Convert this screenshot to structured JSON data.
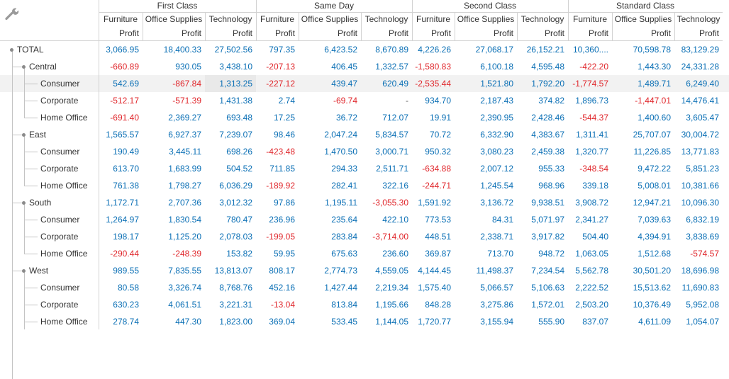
{
  "toolbar": {
    "icon": "wrench-icon"
  },
  "columns": {
    "groups": [
      "First Class",
      "Same Day",
      "Second Class",
      "Standard Class"
    ],
    "categories": [
      "Furniture",
      "Office Supplies",
      "Technology"
    ],
    "measure": "Profit"
  },
  "rows": [
    {
      "label": "TOTAL",
      "level": 0,
      "values": [
        "3,066.95",
        "18,400.33",
        "27,502.56",
        "797.35",
        "6,423.52",
        "8,670.89",
        "4,226.26",
        "27,068.17",
        "26,152.21",
        "10,360....",
        "70,598.78",
        "83,129.29"
      ]
    },
    {
      "label": "Central",
      "level": 1,
      "values": [
        "-660.89",
        "930.05",
        "3,438.10",
        "-207.13",
        "406.45",
        "1,332.57",
        "-1,580.83",
        "6,100.18",
        "4,595.48",
        "-422.20",
        "1,443.30",
        "24,331.28"
      ]
    },
    {
      "label": "Consumer",
      "level": 2,
      "values": [
        "542.69",
        "-867.84",
        "1,313.25",
        "-227.12",
        "439.47",
        "620.49",
        "-2,535.44",
        "1,521.80",
        "1,792.20",
        "-1,774.57",
        "1,489.71",
        "6,249.40"
      ]
    },
    {
      "label": "Corporate",
      "level": 2,
      "values": [
        "-512.17",
        "-571.39",
        "1,431.38",
        "2.74",
        "-69.74",
        "-",
        "934.70",
        "2,187.43",
        "374.82",
        "1,896.73",
        "-1,447.01",
        "14,476.41"
      ]
    },
    {
      "label": "Home Office",
      "level": 2,
      "values": [
        "-691.40",
        "2,369.27",
        "693.48",
        "17.25",
        "36.72",
        "712.07",
        "19.91",
        "2,390.95",
        "2,428.46",
        "-544.37",
        "1,400.60",
        "3,605.47"
      ]
    },
    {
      "label": "East",
      "level": 1,
      "values": [
        "1,565.57",
        "6,927.37",
        "7,239.07",
        "98.46",
        "2,047.24",
        "5,834.57",
        "70.72",
        "6,332.90",
        "4,383.67",
        "1,311.41",
        "25,707.07",
        "30,004.72"
      ]
    },
    {
      "label": "Consumer",
      "level": 2,
      "values": [
        "190.49",
        "3,445.11",
        "698.26",
        "-423.48",
        "1,470.50",
        "3,000.71",
        "950.32",
        "3,080.23",
        "2,459.38",
        "1,320.77",
        "11,226.85",
        "13,771.83"
      ]
    },
    {
      "label": "Corporate",
      "level": 2,
      "values": [
        "613.70",
        "1,683.99",
        "504.52",
        "711.85",
        "294.33",
        "2,511.71",
        "-634.88",
        "2,007.12",
        "955.33",
        "-348.54",
        "9,472.22",
        "5,851.23"
      ]
    },
    {
      "label": "Home Office",
      "level": 2,
      "values": [
        "761.38",
        "1,798.27",
        "6,036.29",
        "-189.92",
        "282.41",
        "322.16",
        "-244.71",
        "1,245.54",
        "968.96",
        "339.18",
        "5,008.01",
        "10,381.66"
      ]
    },
    {
      "label": "South",
      "level": 1,
      "values": [
        "1,172.71",
        "2,707.36",
        "3,012.32",
        "97.86",
        "1,195.11",
        "-3,055.30",
        "1,591.92",
        "3,136.72",
        "9,938.51",
        "3,908.72",
        "12,947.21",
        "10,096.30"
      ]
    },
    {
      "label": "Consumer",
      "level": 2,
      "values": [
        "1,264.97",
        "1,830.54",
        "780.47",
        "236.96",
        "235.64",
        "422.10",
        "773.53",
        "84.31",
        "5,071.97",
        "2,341.27",
        "7,039.63",
        "6,832.19"
      ]
    },
    {
      "label": "Corporate",
      "level": 2,
      "values": [
        "198.17",
        "1,125.20",
        "2,078.03",
        "-199.05",
        "283.84",
        "-3,714.00",
        "448.51",
        "2,338.71",
        "3,917.82",
        "504.40",
        "4,394.91",
        "3,838.69"
      ]
    },
    {
      "label": "Home Office",
      "level": 2,
      "values": [
        "-290.44",
        "-248.39",
        "153.82",
        "59.95",
        "675.63",
        "236.60",
        "369.87",
        "713.70",
        "948.72",
        "1,063.05",
        "1,512.68",
        "-574.57"
      ]
    },
    {
      "label": "West",
      "level": 1,
      "values": [
        "989.55",
        "7,835.55",
        "13,813.07",
        "808.17",
        "2,774.73",
        "4,559.05",
        "4,144.45",
        "11,498.37",
        "7,234.54",
        "5,562.78",
        "30,501.20",
        "18,696.98"
      ]
    },
    {
      "label": "Consumer",
      "level": 2,
      "values": [
        "80.58",
        "3,326.74",
        "8,768.76",
        "452.16",
        "1,427.44",
        "2,219.34",
        "1,575.40",
        "5,066.57",
        "5,106.63",
        "2,222.52",
        "15,513.62",
        "11,690.83"
      ]
    },
    {
      "label": "Corporate",
      "level": 2,
      "values": [
        "630.23",
        "4,061.51",
        "3,221.31",
        "-13.04",
        "813.84",
        "1,195.66",
        "848.28",
        "3,275.86",
        "1,572.01",
        "2,503.20",
        "10,376.49",
        "5,952.08"
      ]
    },
    {
      "label": "Home Office",
      "level": 2,
      "values": [
        "278.74",
        "447.30",
        "1,823.00",
        "369.04",
        "533.45",
        "1,144.05",
        "1,720.77",
        "3,155.94",
        "555.90",
        "837.07",
        "4,611.09",
        "1,054.07"
      ]
    }
  ],
  "state": {
    "hover_row": 2,
    "selected_cell": [
      2,
      2
    ]
  },
  "colors": {
    "positive": "#0a6fb5",
    "negative": "#e0262b",
    "grid": "#d2d2d2",
    "hover": "#f2f2f2"
  }
}
